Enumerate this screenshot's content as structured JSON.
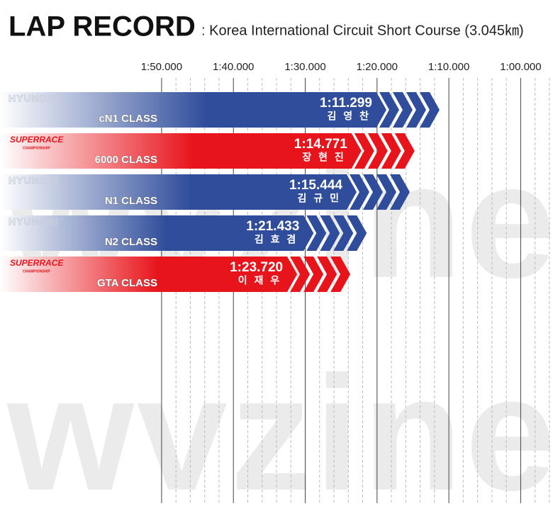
{
  "chart_data": {
    "type": "bar",
    "title": "LAP RECORD",
    "subtitle": ": Korea International Circuit Short Course (3.045㎞)",
    "watermark": "wvzine",
    "categories": [
      "cN1 CLASS",
      "6000 CLASS",
      "N1 CLASS",
      "N2 CLASS",
      "GTA CLASS"
    ],
    "values": [
      71.299,
      74.771,
      75.444,
      81.433,
      83.72
    ],
    "value_labels": [
      "1:11.299",
      "1:14.771",
      "1:15.444",
      "1:21.433",
      "1:23.720"
    ],
    "drivers": [
      "김 영 찬",
      "장 현 진",
      "김 규 민",
      "김 효 겸",
      "이 재 우"
    ],
    "brands": [
      "HYUNDAI",
      "SUPERRACE",
      "HYUNDAI",
      "HYUNDAI",
      "SUPERRACE"
    ],
    "brand_subtitles": {
      "SUPERRACE": "CHAMPIONSHIP"
    },
    "colors": [
      "#2f4d9b",
      "#e8141c",
      "#2f4d9b",
      "#2f4d9b",
      "#e8141c"
    ],
    "xlim": [
      132.5,
      55.5
    ],
    "xticks": [
      {
        "value": 110,
        "label": "1:50.000"
      },
      {
        "value": 100,
        "label": "1:40.000"
      },
      {
        "value": 90,
        "label": "1:30.000"
      },
      {
        "value": 80,
        "label": "1:20.000"
      },
      {
        "value": 70,
        "label": "1:10.000"
      },
      {
        "value": 60,
        "label": "1:00.000"
      }
    ],
    "minor_xticks": [
      108,
      106,
      104,
      102,
      98,
      96,
      94,
      92,
      88,
      86,
      84,
      82,
      78,
      76,
      74,
      72,
      68,
      66,
      64,
      62,
      58,
      56
    ],
    "grid": true
  }
}
